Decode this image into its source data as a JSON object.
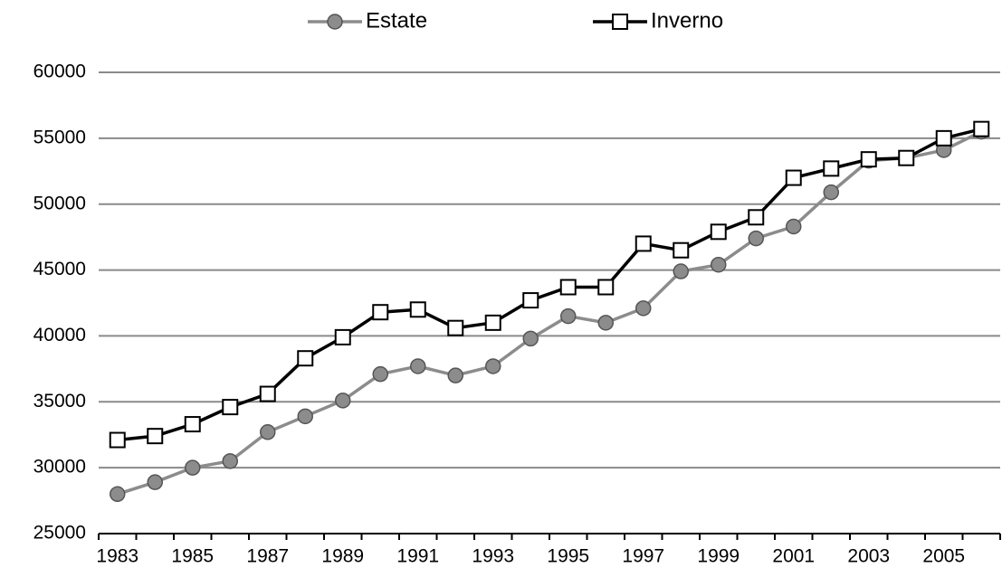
{
  "chart_data": {
    "type": "line",
    "categories": [
      "1983",
      null,
      "1985",
      null,
      "1987",
      null,
      "1989",
      null,
      "1991",
      null,
      "1993",
      null,
      "1995",
      null,
      "1997",
      null,
      "1999",
      null,
      "2001",
      null,
      "2003",
      null,
      "2005",
      null
    ],
    "series": [
      {
        "name": "Estate",
        "color": "#8c8c8c",
        "marker": "circle",
        "values": [
          28000,
          28900,
          30000,
          30500,
          32700,
          33900,
          35100,
          37100,
          37700,
          37000,
          37700,
          39800,
          41500,
          41000,
          42100,
          44900,
          45400,
          47400,
          48300,
          50900,
          53300,
          53500,
          54100,
          55500
        ]
      },
      {
        "name": "Inverno",
        "color": "#000000",
        "marker": "square",
        "values": [
          32100,
          32400,
          33300,
          34600,
          35600,
          38300,
          39900,
          41800,
          42000,
          40600,
          41000,
          42700,
          43700,
          43700,
          47000,
          46500,
          47900,
          49000,
          52000,
          52700,
          53400,
          53500,
          55000,
          55700
        ]
      }
    ],
    "ylim": [
      25000,
      60000
    ],
    "yticks": [
      25000,
      30000,
      35000,
      40000,
      45000,
      50000,
      55000,
      60000
    ],
    "grid": true,
    "legend": "top"
  }
}
